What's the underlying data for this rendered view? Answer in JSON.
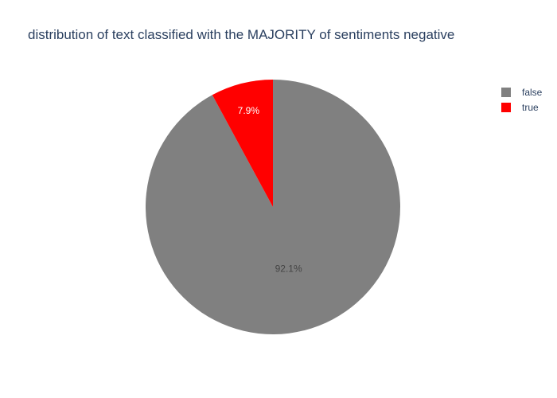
{
  "chart_data": {
    "type": "pie",
    "title": "distribution of text classified with the MAJORITY of sentiments negative",
    "labels": [
      "false",
      "true"
    ],
    "values": [
      92.1,
      7.9
    ],
    "value_labels": [
      "92.1%",
      "7.9%"
    ],
    "colors": [
      "#808080",
      "#ff0000"
    ],
    "label_colors": [
      "#444444",
      "#ffffff"
    ],
    "legend_position": "top-right"
  }
}
